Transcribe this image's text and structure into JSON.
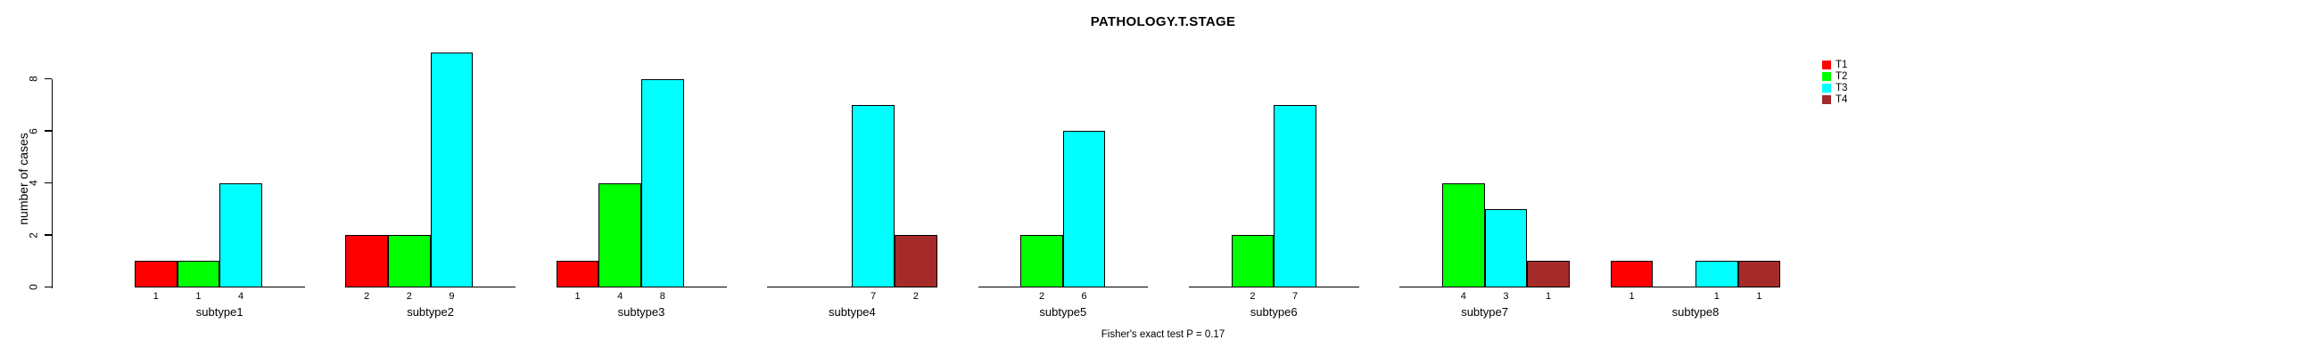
{
  "chart_data": {
    "type": "bar",
    "title": "PATHOLOGY.T.STAGE",
    "ylabel": "number of cases",
    "xlabel": "",
    "footnote": "Fisher's exact test P = 0.17",
    "categories": [
      "subtype1",
      "subtype2",
      "subtype3",
      "subtype4",
      "subtype5",
      "subtype6",
      "subtype7",
      "subtype8"
    ],
    "series": [
      {
        "name": "T1",
        "color": "#FF0000",
        "values": [
          1,
          2,
          1,
          0,
          0,
          0,
          0,
          1
        ]
      },
      {
        "name": "T2",
        "color": "#00FF00",
        "values": [
          1,
          2,
          4,
          0,
          2,
          2,
          4,
          0
        ]
      },
      {
        "name": "T3",
        "color": "#00FFFF",
        "values": [
          4,
          9,
          8,
          7,
          6,
          7,
          3,
          1
        ]
      },
      {
        "name": "T4",
        "color": "#A52A2A",
        "values": [
          0,
          0,
          0,
          2,
          0,
          0,
          1,
          1
        ]
      }
    ],
    "yticks": [
      0,
      2,
      4,
      6,
      8
    ],
    "ylim": [
      0,
      9
    ],
    "grid": false,
    "legend_position": "top-right",
    "bar_value_labels": "shown under each nonzero bar",
    "axis_color": "#000000",
    "background_color": "#FFFFFF"
  }
}
